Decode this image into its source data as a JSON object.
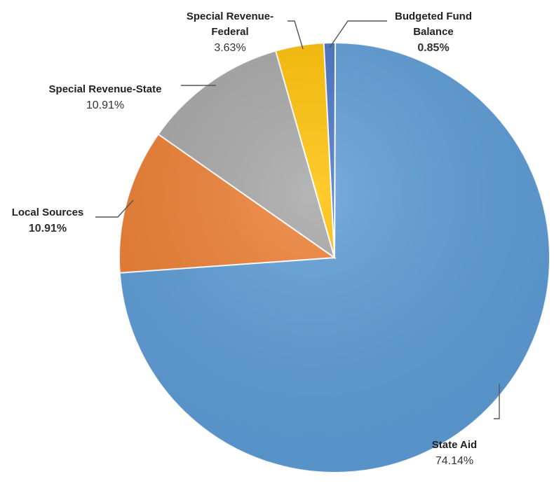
{
  "chart_data": {
    "type": "pie",
    "title": "",
    "slices": [
      {
        "label": "State Aid",
        "label_lines": [
          "State Aid"
        ],
        "value": 74.14,
        "display": "74.14%",
        "value_bold": false,
        "color": "#5B9BD5"
      },
      {
        "label": "Local Sources",
        "label_lines": [
          "Local Sources"
        ],
        "value": 10.91,
        "display": "10.91%",
        "value_bold": true,
        "color": "#ED7D31"
      },
      {
        "label": "Special Revenue-State",
        "label_lines": [
          "Special Revenue-State"
        ],
        "value": 10.91,
        "display": "10.91%",
        "value_bold": false,
        "color": "#A5A5A5"
      },
      {
        "label": "Special Revenue-Federal",
        "label_lines": [
          "Special Revenue-",
          "Federal"
        ],
        "value": 3.63,
        "display": "3.63%",
        "value_bold": false,
        "color": "#FFC000"
      },
      {
        "label": "Budgeted Fund Balance",
        "label_lines": [
          "Budgeted Fund",
          "Balance"
        ],
        "value": 0.85,
        "display": "0.85%",
        "value_bold": true,
        "color": "#4472C4"
      }
    ]
  }
}
